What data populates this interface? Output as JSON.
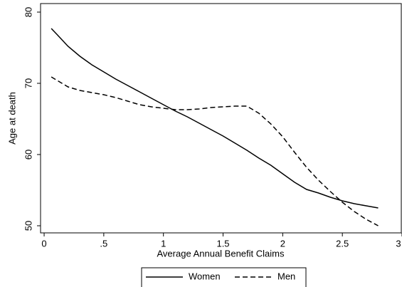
{
  "chart_data": {
    "type": "line",
    "x_label": "Average Annual Benefit Claims",
    "y_label": "Age at death",
    "x": [
      0.06,
      0.1,
      0.2,
      0.3,
      0.4,
      0.5,
      0.6,
      0.7,
      0.8,
      0.9,
      1.0,
      1.1,
      1.2,
      1.3,
      1.4,
      1.5,
      1.6,
      1.7,
      1.8,
      1.9,
      2.0,
      2.1,
      2.2,
      2.3,
      2.4,
      2.5,
      2.6,
      2.7,
      2.8
    ],
    "series": [
      {
        "name": "Women",
        "color": "#000000",
        "dash": "solid",
        "values": [
          77.7,
          77.0,
          75.2,
          73.8,
          72.6,
          71.6,
          70.6,
          69.7,
          68.8,
          67.9,
          67.0,
          66.1,
          65.3,
          64.4,
          63.5,
          62.6,
          61.6,
          60.6,
          59.5,
          58.5,
          57.3,
          56.1,
          55.1,
          54.6,
          54.0,
          53.5,
          53.1,
          52.8,
          52.5
        ]
      },
      {
        "name": "Men",
        "color": "#000000",
        "dash": "dashed",
        "values": [
          70.9,
          70.5,
          69.5,
          69.0,
          68.7,
          68.4,
          68.0,
          67.5,
          67.0,
          66.7,
          66.5,
          66.3,
          66.3,
          66.4,
          66.6,
          66.7,
          66.8,
          66.8,
          65.8,
          64.3,
          62.5,
          60.3,
          58.2,
          56.4,
          54.8,
          53.3,
          52.0,
          50.9,
          50.0
        ]
      }
    ],
    "xlim": [
      -0.03,
      3.0
    ],
    "xticks": [
      0,
      {
        "value": 0.5,
        "label": ".5"
      },
      1,
      1.5,
      2,
      2.5,
      3
    ],
    "ylim": [
      49,
      81.2
    ],
    "yticks": [
      50,
      60,
      70,
      80
    ],
    "grid": false,
    "legend": "bottom"
  }
}
